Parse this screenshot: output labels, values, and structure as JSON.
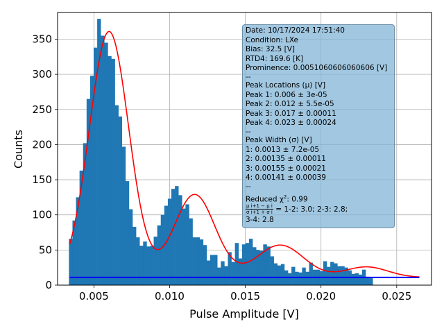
{
  "chart_data": {
    "type": "bar",
    "xlabel": "Pulse Amplitude [V]",
    "ylabel": "Counts",
    "xlim": [
      0.0026,
      0.0273
    ],
    "ylim": [
      0,
      388
    ],
    "grid": true,
    "xticks": [
      0.005,
      0.01,
      0.015,
      0.02,
      0.025
    ],
    "xtick_labels": [
      "0.005",
      "0.010",
      "0.015",
      "0.020",
      "0.025"
    ],
    "yticks": [
      0,
      50,
      100,
      150,
      200,
      250,
      300,
      350
    ],
    "ytick_labels": [
      "0",
      "50",
      "100",
      "150",
      "200",
      "250",
      "300",
      "350"
    ],
    "histogram": {
      "color": "#1f77b4",
      "bin_start": 0.00335,
      "bin_width": 0.0002333,
      "counts": [
        66,
        92,
        125,
        163,
        202,
        265,
        298,
        338,
        379,
        355,
        345,
        326,
        322,
        256,
        240,
        197,
        148,
        108,
        83,
        68,
        56,
        62,
        55,
        56,
        69,
        85,
        100,
        113,
        123,
        137,
        141,
        128,
        109,
        115,
        95,
        68,
        68,
        65,
        57,
        35,
        43,
        43,
        25,
        34,
        27,
        47,
        33,
        60,
        38,
        58,
        60,
        66,
        54,
        50,
        49,
        58,
        55,
        41,
        31,
        28,
        30,
        21,
        17,
        26,
        19,
        18,
        25,
        19,
        32,
        22,
        22,
        20,
        34,
        26,
        33,
        31,
        27,
        27,
        25,
        21,
        16,
        17,
        15,
        22,
        12,
        11
      ]
    },
    "fit_curve": {
      "color": "#ff0000",
      "baseline": 11,
      "peaks": [
        {
          "mu": 0.006,
          "sigma": 0.0013,
          "amp": 350
        },
        {
          "mu": 0.01165,
          "sigma": 0.00135,
          "amp": 118
        },
        {
          "mu": 0.0173,
          "sigma": 0.00155,
          "amp": 46
        },
        {
          "mu": 0.023,
          "sigma": 0.00141,
          "amp": 15
        }
      ],
      "x_range": [
        0.0034,
        0.0265
      ]
    },
    "baseline_line": {
      "color": "#0000ff",
      "y": 11,
      "x_range": [
        0.0034,
        0.0265
      ]
    }
  },
  "info_box": {
    "lines": [
      "Date: 10/17/2024 17:51:40",
      "Condition: LXe",
      "Bias: 32.5 [V]",
      "RTD4: 169.6 [K]",
      "Prominence: 0.0051060606060606 [V]",
      "--",
      "Peak Locations (μ) [V]",
      "Peak 1: 0.006 ± 3e-05",
      "Peak 2: 0.012 ± 5.5e-05",
      "Peak 3: 0.017 ± 0.00011",
      "Peak 4: 0.023 ± 0.00024",
      "--",
      "Peak Width (σ) [V]",
      "1: 0.0013 ± 7.2e-05",
      "2: 0.00135 ± 0.00011",
      "3: 0.00155 ± 0.00021",
      "4: 0.00141 ± 0.00039",
      "--"
    ],
    "chi2_label": "Reduced χ",
    "chi2_sup": "2",
    "chi2_value": ": 0.99",
    "ratio_num": "μ i+1 − μ i",
    "ratio_den": "σ i+1 + σ i",
    "ratio_values": " =  1-2: 3.0; 2-3: 2.8;",
    "ratio_last": "3-4: 2.8"
  }
}
